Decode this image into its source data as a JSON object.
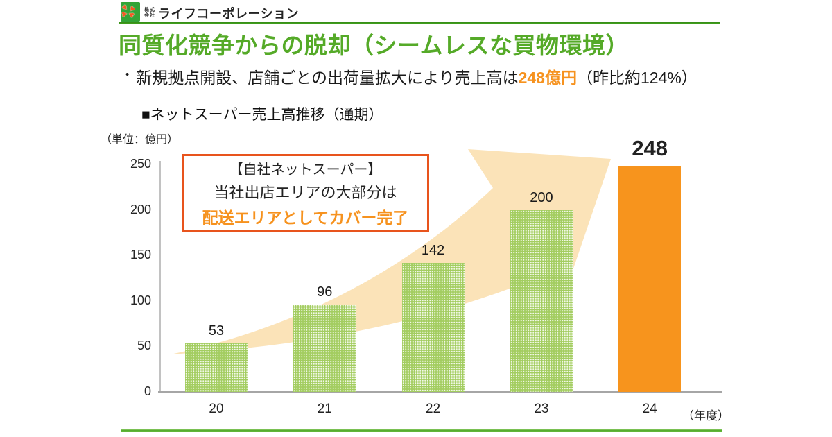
{
  "header": {
    "company_type_top": "株式",
    "company_type_bottom": "会社",
    "company_name": "ライフコーポレーション"
  },
  "title": "同質化競争からの脱却（シームレスな買物環境）",
  "bullet": {
    "marker": "•",
    "pre": "新規拠点開設、店舗ごとの出荷量拡大により売上高は",
    "highlight": "248億円",
    "post": "（昨比約124%）"
  },
  "section_header": "■ネットスーパー売上高推移（通期）",
  "callout": {
    "line1": "【自社ネットスーパー】",
    "line2": "当社出店エリアの大部分は",
    "line3": "配送エリアとしてカバー完了"
  },
  "chart_data": {
    "type": "bar",
    "title": "ネットスーパー売上高推移（通期）",
    "unit_label": "（単位：億円）",
    "x_suffix_label": "（年度）",
    "categories": [
      "20",
      "21",
      "22",
      "23",
      "24"
    ],
    "values": [
      53,
      96,
      142,
      200,
      248
    ],
    "highlighted_category": "24",
    "yticks": [
      0,
      50,
      100,
      150,
      200,
      250
    ],
    "ylim": [
      0,
      250
    ],
    "grid": false,
    "legend": "none",
    "bar_color_normal": "#A3CD60",
    "bar_color_highlight": "#F7941D"
  },
  "colors": {
    "title_green": "#55AA28",
    "accent_orange": "#F6921E",
    "callout_border": "#E8541D",
    "arrow_fill": "#FBE3B8",
    "rule_green": "#3FA51D",
    "logo_green": "#33A437"
  }
}
